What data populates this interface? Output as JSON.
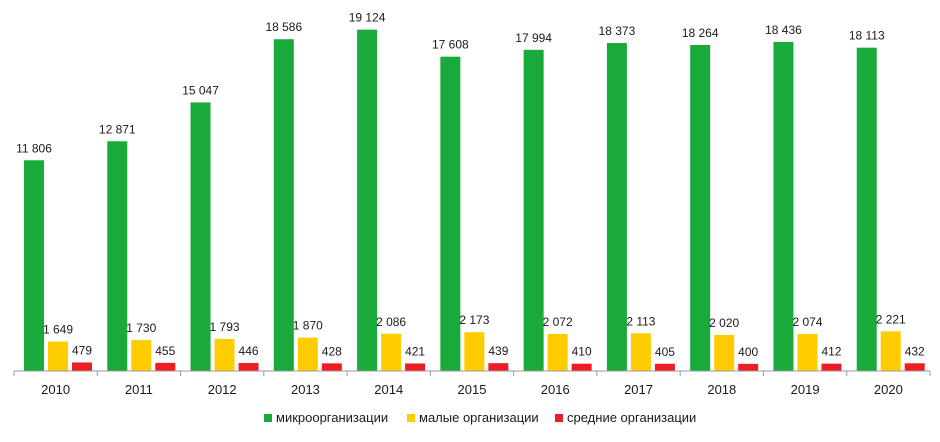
{
  "chart_data": {
    "type": "bar",
    "categories": [
      "2010",
      "2011",
      "2012",
      "2013",
      "2014",
      "2015",
      "2016",
      "2017",
      "2018",
      "2019",
      "2020"
    ],
    "series": [
      {
        "name": "микроорганизации",
        "color": "#1aaa3c",
        "values": [
          11806,
          12871,
          15047,
          18586,
          19124,
          17608,
          17994,
          18373,
          18264,
          18436,
          18113
        ],
        "labels": [
          "11 806",
          "12 871",
          "15 047",
          "18 586",
          "19 124",
          "17 608",
          "17 994",
          "18 373",
          "18 264",
          "18 436",
          "18 113"
        ]
      },
      {
        "name": "малые организации",
        "color": "#ffcc00",
        "values": [
          1649,
          1730,
          1793,
          1870,
          2086,
          2173,
          2072,
          2113,
          2020,
          2074,
          2221
        ],
        "labels": [
          "1 649",
          "1 730",
          "1 793",
          "1 870",
          "2 086",
          "2 173",
          "2 072",
          "2 113",
          "2 020",
          "2 074",
          "2 221"
        ]
      },
      {
        "name": "средние организации",
        "color": "#ee1c24",
        "values": [
          479,
          455,
          446,
          428,
          421,
          439,
          410,
          405,
          400,
          412,
          432
        ],
        "labels": [
          "479",
          "455",
          "446",
          "428",
          "421",
          "439",
          "410",
          "405",
          "400",
          "412",
          "432"
        ]
      }
    ],
    "ylim": [
      0,
      20000
    ],
    "grid": false,
    "legend_position": "bottom"
  }
}
